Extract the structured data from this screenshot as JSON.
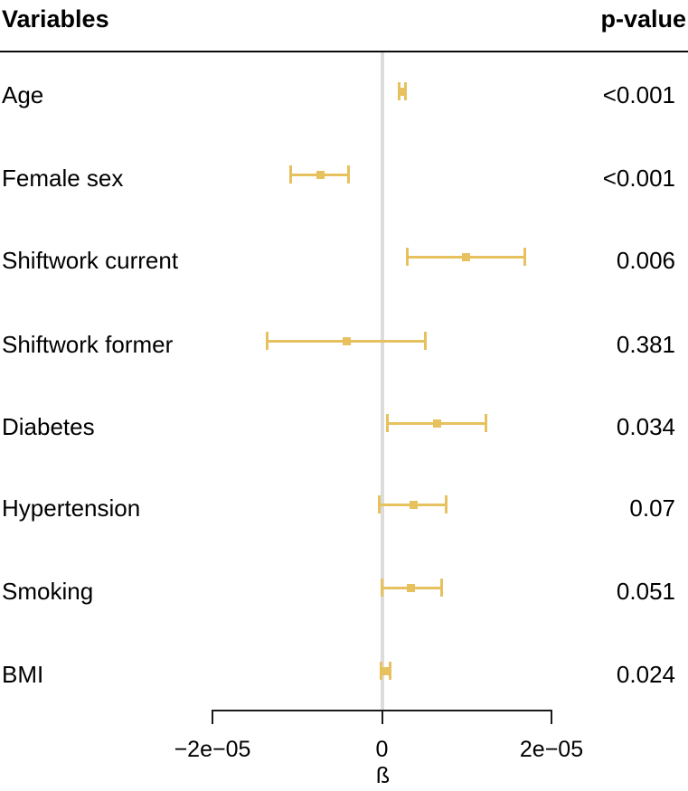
{
  "header": {
    "left": "Variables",
    "right": "p-value"
  },
  "colors": {
    "marker": "#e7c15e",
    "zero_line": "#dcdcdc",
    "axis": "#1a1a1a",
    "text": "#000000",
    "background": "#ffffff"
  },
  "chart_data": {
    "type": "scatter",
    "variant": "forest-plot",
    "title": "",
    "xlabel": "ß",
    "xlim": [
      -2e-05,
      2e-05
    ],
    "grid": false,
    "zero_reference_line": 0,
    "x_ticks": [
      {
        "value": -2e-05,
        "label": "−2e−05"
      },
      {
        "value": 0,
        "label": "0"
      },
      {
        "value": 2e-05,
        "label": "2e−05"
      }
    ],
    "rows": [
      {
        "label": "Age",
        "estimate": 2.4e-06,
        "ci_low": 2e-06,
        "ci_high": 2.8e-06,
        "p_value": "<0.001"
      },
      {
        "label": "Female sex",
        "estimate": -7.3e-06,
        "ci_low": -1.08e-05,
        "ci_high": -3.9e-06,
        "p_value": "<0.001"
      },
      {
        "label": "Shiftwork current",
        "estimate": 9.9e-06,
        "ci_low": 3e-06,
        "ci_high": 1.69e-05,
        "p_value": "0.006"
      },
      {
        "label": "Shiftwork former",
        "estimate": -4.2e-06,
        "ci_low": -1.35e-05,
        "ci_high": 5.1e-06,
        "p_value": "0.381"
      },
      {
        "label": "Diabetes",
        "estimate": 6.5e-06,
        "ci_low": 6e-07,
        "ci_high": 1.23e-05,
        "p_value": "0.034"
      },
      {
        "label": "Hypertension",
        "estimate": 3.7e-06,
        "ci_low": -3e-07,
        "ci_high": 7.6e-06,
        "p_value": "0.07"
      },
      {
        "label": "Smoking",
        "estimate": 3.4e-06,
        "ci_low": 0.0,
        "ci_high": 7e-06,
        "p_value": "0.051"
      },
      {
        "label": "BMI",
        "estimate": 5e-07,
        "ci_low": -1e-07,
        "ci_high": 1e-06,
        "p_value": "0.024"
      }
    ]
  }
}
